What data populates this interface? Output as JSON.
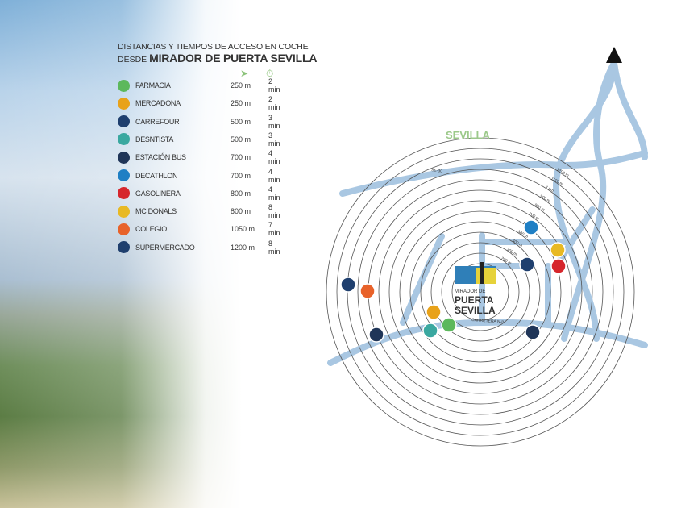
{
  "title": {
    "line1": "DISTANCIAS Y TIEMPOS DE ACCESO EN COCHE",
    "line2_prefix": "DESDE",
    "line2_bold": "MIRADOR DE PUERTA SEVILLA"
  },
  "column_icons": {
    "distance": "navigation-arrow-icon",
    "time": "stopwatch-icon"
  },
  "places": [
    {
      "name": "FARMACIA",
      "distance": "250 m",
      "time": "2 min",
      "icon": "pharmacy-cross-icon",
      "color": "#5cb85c"
    },
    {
      "name": "MERCADONA",
      "distance": "250 m",
      "time": "2 min",
      "icon": "mercadona-icon",
      "color": "#e8a21a"
    },
    {
      "name": "CARREFOUR",
      "distance": "500 m",
      "time": "3 min",
      "icon": "carrefour-icon",
      "color": "#1f3f6e"
    },
    {
      "name": "DESNTISTA",
      "distance": "500 m",
      "time": "3 min",
      "icon": "tooth-icon",
      "color": "#3aa8a0"
    },
    {
      "name": "ESTACIÓN BUS",
      "distance": "700 m",
      "time": "4 min",
      "icon": "bus-icon",
      "color": "#1f3558"
    },
    {
      "name": "DECATHLON",
      "distance": "700 m",
      "time": "4 min",
      "icon": "decathlon-icon",
      "color": "#1f7fc4"
    },
    {
      "name": "GASOLINERA",
      "distance": "800 m",
      "time": "4 min",
      "icon": "fuel-pump-icon",
      "color": "#d6262c"
    },
    {
      "name": "MC DONALS",
      "distance": "800 m",
      "time": "8 min",
      "icon": "mcdonalds-icon",
      "color": "#e8b923"
    },
    {
      "name": "COLEGIO",
      "distance": "1050 m",
      "time": "7 min",
      "icon": "school-icon",
      "color": "#e8622a"
    },
    {
      "name": "SUPERMERCADO",
      "distance": "1200 m",
      "time": "8 min",
      "icon": "supermarket-cart-icon",
      "color": "#1f3f6e"
    }
  ],
  "map": {
    "city_label": "SEVILLA",
    "ring_labels": [
      "200 m",
      "300 m",
      "400 m",
      "500 m",
      "600 m",
      "700 m",
      "800 m",
      "900 m",
      "1 km",
      "1100 m",
      "1200 m"
    ],
    "road_labels": [
      "SE-30",
      "CARRETERA N-IV"
    ],
    "logo": {
      "line1": "MIRADOR DE",
      "line2": "PUERTA",
      "line3": "SEVILLA"
    },
    "road_color": "#a9c7e2",
    "city_label_color": "#9cc98a",
    "north_arrow": "north-arrow-icon"
  }
}
